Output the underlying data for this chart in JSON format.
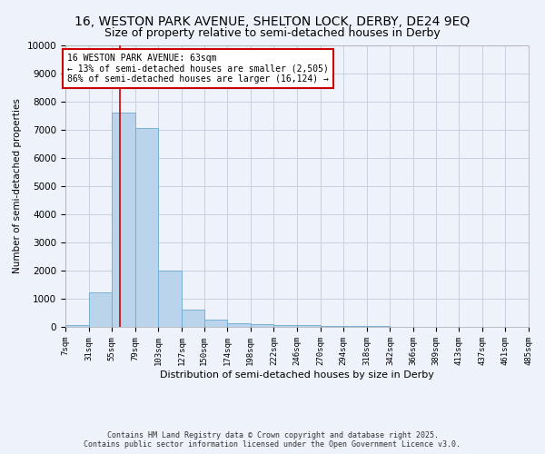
{
  "title": "16, WESTON PARK AVENUE, SHELTON LOCK, DERBY, DE24 9EQ",
  "subtitle": "Size of property relative to semi-detached houses in Derby",
  "xlabel": "Distribution of semi-detached houses by size in Derby",
  "ylabel": "Number of semi-detached properties",
  "annotation_text": "16 WESTON PARK AVENUE: 63sqm\n← 13% of semi-detached houses are smaller (2,505)\n86% of semi-detached houses are larger (16,124) →",
  "bins": [
    7,
    31,
    55,
    79,
    103,
    127,
    150,
    174,
    198,
    222,
    246,
    270,
    294,
    318,
    342,
    366,
    389,
    413,
    437,
    461,
    485
  ],
  "counts": [
    50,
    1230,
    7600,
    7050,
    2000,
    600,
    250,
    130,
    100,
    70,
    55,
    40,
    30,
    20,
    15,
    10,
    8,
    6,
    5,
    4
  ],
  "bar_color": "#bad4ec",
  "bar_edge_color": "#6aaad4",
  "vline_color": "#cc0000",
  "vline_x": 63,
  "bg_color": "#eef2fa",
  "grid_color": "#c8d0e0",
  "annotation_box_color": "#cc0000",
  "ylim": [
    0,
    10000
  ],
  "yticks": [
    0,
    1000,
    2000,
    3000,
    4000,
    5000,
    6000,
    7000,
    8000,
    9000,
    10000
  ],
  "footnote": "Contains HM Land Registry data © Crown copyright and database right 2025.\nContains public sector information licensed under the Open Government Licence v3.0.",
  "fig_width": 6.0,
  "fig_height": 5.0,
  "title_fontsize": 10,
  "subtitle_fontsize": 9
}
